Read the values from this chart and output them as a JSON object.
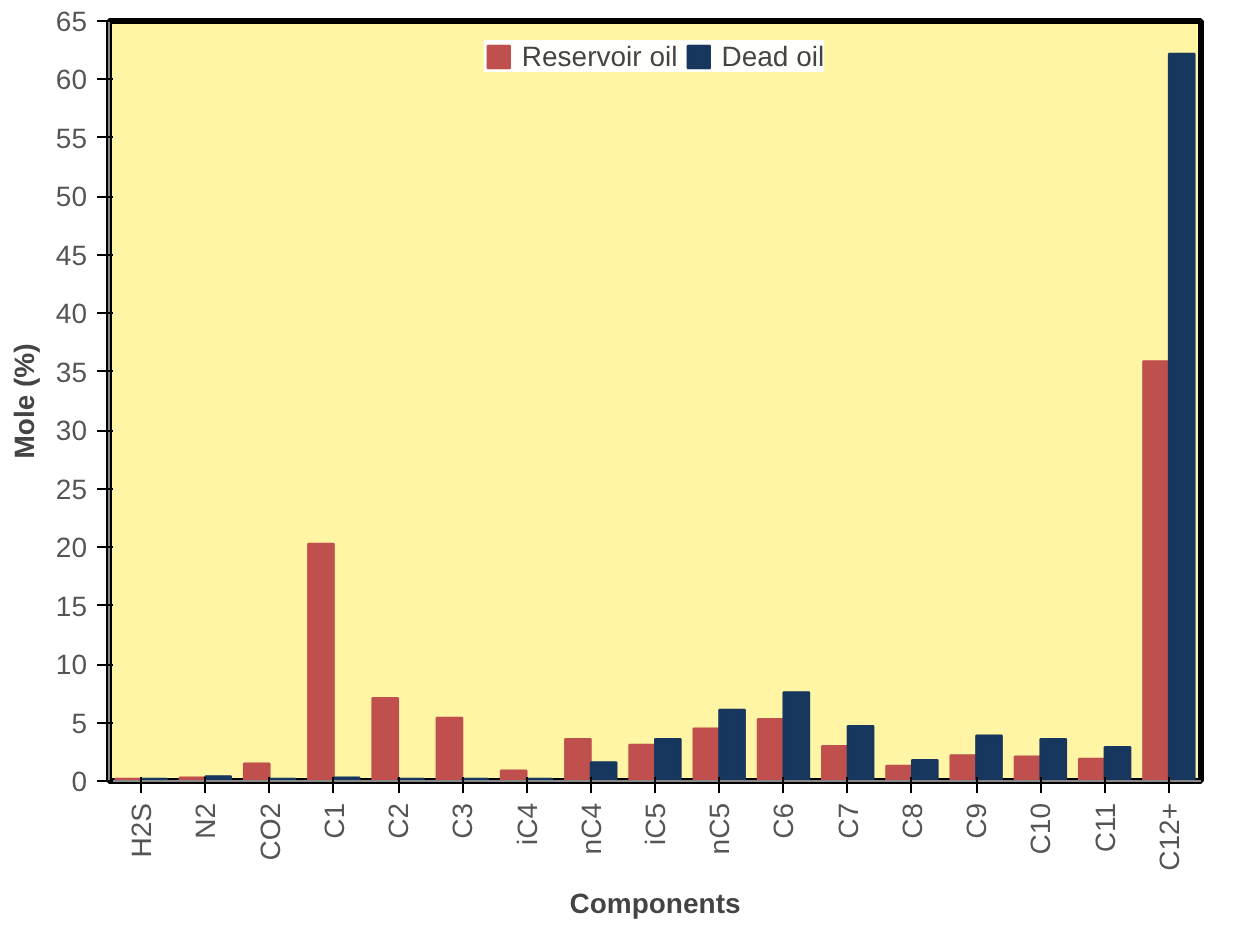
{
  "chart_data": {
    "type": "bar",
    "xlabel": "Components",
    "ylabel": "Mole (%)",
    "categories": [
      "H2S",
      "N2",
      "CO2",
      "C1",
      "C2",
      "C3",
      "iC4",
      "nC4",
      "iC5",
      "nC5",
      "C6",
      "C7",
      "C8",
      "C9",
      "C10",
      "C11",
      "C12+"
    ],
    "series": [
      {
        "name": "Reservoir oil",
        "color": "#c0504d",
        "values": [
          0.2,
          0.3,
          1.5,
          20.3,
          7.1,
          5.4,
          0.9,
          3.6,
          3.1,
          4.5,
          5.3,
          3.0,
          1.3,
          2.2,
          2.1,
          1.9,
          35.9
        ]
      },
      {
        "name": "Dead oil",
        "color": "#17375e",
        "values": [
          0.2,
          0.4,
          0.2,
          0.3,
          0.2,
          0.2,
          0.2,
          1.6,
          3.6,
          6.1,
          7.6,
          4.7,
          1.8,
          3.9,
          3.6,
          2.9,
          62.2
        ]
      }
    ],
    "ylim": [
      0,
      65
    ],
    "yticks": [
      0,
      5,
      10,
      15,
      20,
      25,
      30,
      35,
      40,
      45,
      50,
      55,
      60,
      65
    ],
    "grid": false,
    "legend": "top"
  }
}
